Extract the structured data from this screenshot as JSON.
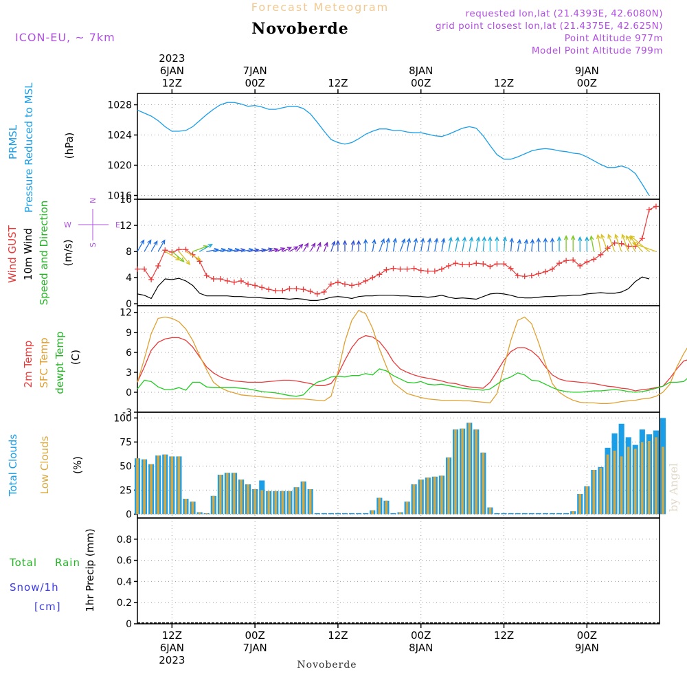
{
  "header": {
    "subtitle": "Forecast Meteogram",
    "station": "Novoberde",
    "model": "ICON-EU, ~ 7km",
    "requested": "requested lon,lat (21.4393E, 42.6080N)",
    "gridpoint": "grid point closest lon,lat (21.4375E, 42.625N)",
    "point_alt": "Point Altitude 977m",
    "model_alt": "Model Point Altitude 799m",
    "footer_station": "Novoberde",
    "watermark": "by Angel"
  },
  "colors": {
    "pressure": "#1a9ee8",
    "gust": "#e83a3a",
    "wind": "#000000",
    "dirlabel": "#22b422",
    "sfc": "#e0a030",
    "dew": "#22cc22",
    "total_clouds": "#1a9ee8",
    "low_clouds": "#d8a840",
    "rain": "#22b422",
    "snow": "#3a3ae8",
    "purple": "#b050e0",
    "forecast_title": "#f0c890"
  },
  "time_axis": {
    "top_labels": [
      {
        "hour": 12,
        "lines": [
          "2023",
          "6JAN",
          "12Z"
        ]
      },
      {
        "hour": 24,
        "lines": [
          "7JAN",
          "00Z"
        ]
      },
      {
        "hour": 36,
        "lines": [
          "12Z"
        ]
      },
      {
        "hour": 48,
        "lines": [
          "8JAN",
          "00Z"
        ]
      },
      {
        "hour": 60,
        "lines": [
          "12Z"
        ]
      },
      {
        "hour": 72,
        "lines": [
          "9JAN",
          "00Z"
        ]
      }
    ],
    "bottom_labels": [
      {
        "hour": 12,
        "lines": [
          "12Z",
          "6JAN",
          "2023"
        ]
      },
      {
        "hour": 24,
        "lines": [
          "00Z",
          "7JAN"
        ]
      },
      {
        "hour": 36,
        "lines": [
          "12Z"
        ]
      },
      {
        "hour": 48,
        "lines": [
          "00Z",
          "8JAN"
        ]
      },
      {
        "hour": 60,
        "lines": [
          "12Z"
        ]
      },
      {
        "hour": 72,
        "lines": [
          "00Z",
          "9JAN"
        ]
      }
    ]
  },
  "compass": {
    "n": "N",
    "s": "S",
    "w": "W",
    "e": "E"
  },
  "chart_data": [
    {
      "type": "line",
      "title": "PRMSL Pressure Reduced to MSL",
      "ylabel": "(hPa)",
      "label_lines": [
        "PRMSL",
        "Pressure Reduced to MSL"
      ],
      "ylim": [
        1015.5,
        1029.5
      ],
      "yticks": [
        1016,
        1020,
        1024,
        1028
      ],
      "x_start": 7,
      "x_step": 1,
      "series": [
        {
          "name": "PRMSL",
          "values": [
            1027.3,
            1026.9,
            1026.5,
            1025.9,
            1025.1,
            1024.5,
            1024.5,
            1024.6,
            1025.1,
            1025.9,
            1026.7,
            1027.4,
            1028.0,
            1028.3,
            1028.3,
            1028.1,
            1027.8,
            1027.9,
            1027.7,
            1027.4,
            1027.4,
            1027.6,
            1027.8,
            1027.8,
            1027.5,
            1026.8,
            1025.7,
            1024.5,
            1023.4,
            1023.0,
            1022.8,
            1023.0,
            1023.5,
            1024.1,
            1024.5,
            1024.8,
            1024.8,
            1024.6,
            1024.6,
            1024.4,
            1024.3,
            1024.3,
            1024.1,
            1023.9,
            1023.8,
            1024.1,
            1024.5,
            1024.9,
            1025.1,
            1024.9,
            1023.9,
            1022.6,
            1021.4,
            1020.8,
            1020.8,
            1021.1,
            1021.5,
            1021.9,
            1022.1,
            1022.2,
            1022.1,
            1021.9,
            1021.8,
            1021.6,
            1021.5,
            1021.1,
            1020.6,
            1020.1,
            1019.7,
            1019.7,
            1019.9,
            1019.6,
            1018.9,
            1017.5,
            1016.0
          ]
        }
      ]
    },
    {
      "type": "line",
      "title": "Wind GUST, 10m Wind Speed and Direction",
      "ylabel": "(m/s)",
      "label_lines": [
        "Wind GUST",
        "10m Wind",
        "Speed and Direction"
      ],
      "ylim": [
        -0.3,
        16
      ],
      "yticks": [
        0,
        4,
        8,
        12,
        16
      ],
      "x_start": 7,
      "x_step": 1,
      "series": [
        {
          "name": "Wind GUST",
          "values": [
            5.3,
            5.3,
            3.7,
            5.8,
            8.2,
            7.9,
            8.3,
            8.3,
            7.5,
            6.5,
            4.3,
            3.8,
            3.8,
            3.5,
            3.3,
            3.5,
            3.0,
            2.8,
            2.5,
            2.2,
            2.0,
            2.0,
            2.3,
            2.3,
            2.2,
            1.9,
            1.5,
            1.8,
            3.0,
            3.3,
            3.0,
            2.8,
            3.0,
            3.5,
            4.0,
            4.5,
            5.2,
            5.4,
            5.3,
            5.3,
            5.4,
            5.1,
            5.0,
            5.0,
            5.3,
            5.8,
            6.2,
            6.0,
            6.0,
            6.2,
            6.1,
            5.7,
            6.1,
            6.1,
            5.4,
            4.3,
            4.2,
            4.3,
            4.6,
            4.9,
            5.3,
            6.2,
            6.6,
            6.7,
            5.8,
            6.4,
            6.8,
            7.5,
            8.5,
            9.3,
            9.2,
            8.8,
            8.8,
            10.0,
            14.4,
            14.9
          ]
        },
        {
          "name": "10m Wind",
          "values": [
            1.5,
            1.3,
            0.8,
            2.7,
            3.8,
            3.7,
            3.9,
            3.5,
            2.8,
            1.6,
            1.2,
            1.2,
            1.2,
            1.2,
            1.1,
            1.1,
            1.0,
            1.0,
            0.9,
            0.8,
            0.8,
            0.8,
            0.7,
            0.8,
            0.7,
            0.5,
            0.5,
            0.7,
            1.0,
            1.1,
            1.0,
            0.8,
            1.1,
            1.2,
            1.2,
            1.3,
            1.3,
            1.3,
            1.2,
            1.2,
            1.1,
            1.1,
            1.0,
            1.1,
            1.3,
            1.0,
            0.8,
            0.9,
            0.8,
            0.7,
            1.1,
            1.5,
            1.6,
            1.5,
            1.3,
            1.0,
            0.9,
            0.9,
            1.0,
            1.1,
            1.1,
            1.2,
            1.2,
            1.3,
            1.3,
            1.5,
            1.6,
            1.7,
            1.6,
            1.6,
            1.8,
            2.3,
            3.4,
            4.1,
            3.8
          ]
        }
      ],
      "arrows": {
        "y_value": 8,
        "direction_deg": [
          210,
          210,
          210,
          210,
          300,
          310,
          320,
          300,
          250,
          240,
          260,
          260,
          260,
          260,
          260,
          260,
          260,
          260,
          255,
          255,
          250,
          245,
          240,
          220,
          210,
          210,
          200,
          200,
          200,
          180,
          180,
          190,
          180,
          180,
          190,
          200,
          190,
          190,
          200,
          190,
          190,
          190,
          190,
          190,
          190,
          190,
          190,
          190,
          190,
          190,
          185,
          180,
          180,
          185,
          185,
          190,
          190,
          185,
          180,
          180,
          180,
          180,
          180,
          180,
          180,
          180,
          170,
          170,
          160,
          160,
          160,
          160,
          150,
          140,
          130,
          110
        ],
        "speed": [
          5,
          5,
          4,
          5,
          8,
          7,
          8,
          8,
          7,
          6,
          4,
          4,
          4,
          4,
          3,
          4,
          3,
          3,
          3,
          2,
          2,
          2,
          2,
          2,
          2,
          2,
          2,
          2,
          3,
          3,
          3,
          3,
          3,
          4,
          4,
          5,
          5,
          5,
          5,
          5,
          5,
          5,
          5,
          5,
          5,
          6,
          6,
          6,
          6,
          6,
          6,
          6,
          6,
          6,
          5,
          4,
          4,
          4,
          5,
          5,
          5,
          6,
          7,
          7,
          6,
          6,
          7,
          8,
          9,
          9,
          9,
          9,
          9,
          10,
          14,
          15
        ]
      }
    },
    {
      "type": "line",
      "title": "2m Temp, SFC Temp, dewpt Temp",
      "ylabel": "(C)",
      "label_lines": [
        "2m Temp",
        "SFC Temp",
        "dewpt Temp"
      ],
      "ylim": [
        -3,
        13
      ],
      "yticks": [
        -3,
        0,
        3,
        6,
        9,
        12
      ],
      "x_start": 7,
      "x_step": 1,
      "series": [
        {
          "name": "2m Temp",
          "values": [
            1.5,
            3.8,
            6.3,
            7.5,
            8.0,
            8.2,
            8.2,
            7.8,
            6.8,
            5.3,
            3.8,
            2.9,
            2.3,
            1.9,
            1.7,
            1.6,
            1.5,
            1.5,
            1.5,
            1.6,
            1.7,
            1.8,
            1.8,
            1.7,
            1.5,
            1.3,
            1.0,
            1.0,
            1.3,
            2.7,
            4.8,
            6.7,
            8.0,
            8.5,
            8.3,
            7.6,
            6.3,
            4.6,
            3.5,
            3.0,
            2.6,
            2.3,
            2.1,
            1.9,
            1.7,
            1.4,
            1.3,
            1.0,
            0.8,
            0.7,
            0.6,
            1.5,
            3.1,
            4.8,
            6.1,
            6.7,
            6.7,
            6.2,
            5.3,
            3.8,
            2.6,
            2.0,
            1.7,
            1.6,
            1.5,
            1.4,
            1.3,
            1.1,
            0.9,
            0.8,
            0.6,
            0.5,
            0.2,
            0.4,
            0.5,
            0.7,
            0.9,
            2.1,
            3.5,
            4.7,
            5.0
          ]
        },
        {
          "name": "SFC Temp",
          "values": [
            1.5,
            5.0,
            8.8,
            11.1,
            11.3,
            11.1,
            10.6,
            9.5,
            7.8,
            5.5,
            3.4,
            1.5,
            0.7,
            0.2,
            -0.1,
            -0.4,
            -0.5,
            -0.6,
            -0.7,
            -0.8,
            -0.9,
            -1.0,
            -1.0,
            -1.0,
            -1.0,
            -1.1,
            -1.2,
            -1.3,
            -0.6,
            3.0,
            7.6,
            10.8,
            12.3,
            11.8,
            9.6,
            6.5,
            3.9,
            1.4,
            0.6,
            -0.2,
            -0.5,
            -0.8,
            -1.0,
            -1.1,
            -1.2,
            -1.2,
            -1.2,
            -1.3,
            -1.3,
            -1.4,
            -1.5,
            -1.6,
            -0.2,
            3.8,
            7.8,
            10.8,
            11.3,
            10.3,
            7.5,
            4.3,
            1.3,
            0.0,
            -0.7,
            -1.2,
            -1.5,
            -1.6,
            -1.6,
            -1.7,
            -1.7,
            -1.6,
            -1.4,
            -1.3,
            -1.2,
            -1.0,
            -0.9,
            -0.6,
            0.0,
            1.2,
            3.8,
            5.8,
            7.5
          ]
        },
        {
          "name": "dewpt Temp",
          "values": [
            0.5,
            1.8,
            1.6,
            0.8,
            0.4,
            0.4,
            0.7,
            0.3,
            1.5,
            1.5,
            0.8,
            0.7,
            0.7,
            0.7,
            0.7,
            0.6,
            0.5,
            0.3,
            0.1,
            0.0,
            -0.1,
            -0.3,
            -0.5,
            -0.6,
            -0.4,
            0.7,
            1.5,
            1.8,
            2.3,
            2.4,
            2.3,
            2.5,
            2.5,
            2.8,
            2.6,
            3.5,
            3.2,
            2.5,
            2.0,
            1.5,
            1.4,
            1.6,
            1.2,
            1.1,
            1.2,
            1.0,
            0.8,
            0.6,
            0.5,
            0.4,
            0.3,
            0.5,
            1.2,
            1.9,
            2.3,
            2.9,
            2.6,
            1.8,
            1.7,
            1.2,
            0.7,
            0.3,
            0.1,
            0.0,
            0.0,
            0.1,
            0.2,
            0.2,
            0.3,
            0.4,
            0.3,
            0.1,
            0.0,
            0.1,
            0.3,
            0.6,
            0.9,
            1.5,
            1.5,
            1.6,
            2.5
          ]
        }
      ]
    },
    {
      "type": "bar",
      "title": "Total Clouds, Low Clouds",
      "ylabel": "(%)",
      "label_lines": [
        "Total Clouds",
        "Low Clouds"
      ],
      "ylim": [
        -4,
        106
      ],
      "yticks": [
        0,
        25,
        50,
        75,
        100
      ],
      "x_start": 7,
      "x_step": 1,
      "series": [
        {
          "name": "Total Clouds",
          "values": [
            58,
            57,
            52,
            61,
            62,
            60,
            60,
            16,
            13,
            2,
            1,
            19,
            41,
            43,
            43,
            36,
            31,
            26,
            35,
            24,
            24,
            24,
            24,
            28,
            34,
            26,
            1,
            1,
            1,
            1,
            1,
            1,
            1,
            1,
            4,
            17,
            14,
            1,
            2,
            13,
            31,
            36,
            38,
            39,
            40,
            59,
            88,
            89,
            95,
            88,
            64,
            7,
            1,
            1,
            1,
            1,
            1,
            1,
            1,
            1,
            1,
            1,
            1,
            3,
            21,
            29,
            46,
            49,
            69,
            84,
            94,
            80,
            72,
            88,
            83,
            87,
            100
          ]
        },
        {
          "name": "Low Clouds",
          "values": [
            58,
            57,
            52,
            61,
            62,
            60,
            60,
            16,
            13,
            2,
            1,
            19,
            41,
            43,
            43,
            36,
            31,
            26,
            25,
            24,
            24,
            24,
            24,
            28,
            34,
            26,
            0,
            0,
            0,
            0,
            0,
            0,
            0,
            0,
            4,
            17,
            14,
            0,
            2,
            13,
            31,
            36,
            38,
            39,
            40,
            59,
            88,
            89,
            95,
            88,
            64,
            7,
            0,
            0,
            0,
            0,
            0,
            0,
            0,
            0,
            0,
            0,
            0,
            3,
            21,
            29,
            46,
            48,
            62,
            66,
            60,
            70,
            68,
            75,
            76,
            80,
            70
          ]
        }
      ]
    },
    {
      "type": "bar",
      "title": "1hr Precip",
      "ylabel": "1hr Precip (mm)",
      "label_lines": [
        "Total",
        "Rain",
        "Snow/1h",
        "[cm]"
      ],
      "ylim": [
        0,
        1.0
      ],
      "yticks": [
        0,
        0.2,
        0.4,
        0.6,
        0.8
      ],
      "x_start": 7,
      "x_step": 1,
      "series": [
        {
          "name": "Total",
          "values": []
        },
        {
          "name": "Rain",
          "values": []
        },
        {
          "name": "Snow/1h",
          "values": []
        }
      ]
    }
  ]
}
